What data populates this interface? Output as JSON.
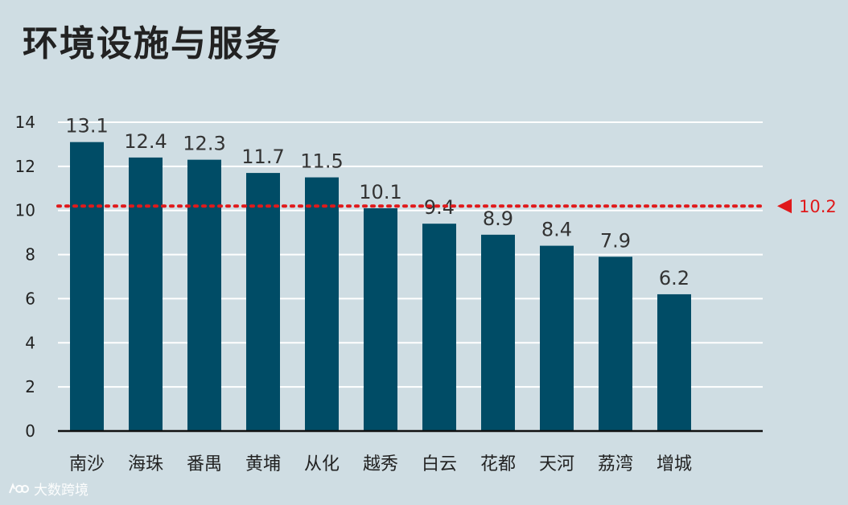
{
  "title": "环境设施与服务",
  "chart_data": {
    "type": "bar",
    "title": "环境设施与服务",
    "categories": [
      "南沙",
      "海珠",
      "番禺",
      "黄埔",
      "从化",
      "越秀",
      "白云",
      "花都",
      "天河",
      "荔湾",
      "增城"
    ],
    "series": [
      {
        "values": [
          13.1,
          12.4,
          12.3,
          11.7,
          11.5,
          10.1,
          9.4,
          8.9,
          8.4,
          7.9,
          6.2
        ]
      }
    ],
    "data_labels": [
      "13.1",
      "12.4",
      "12.3",
      "11.7",
      "11.5",
      "10.1",
      "9.4",
      "8.9",
      "8.4",
      "7.9",
      "6.2"
    ],
    "ylim": [
      0,
      14
    ],
    "yticks": [
      0,
      2,
      4,
      6,
      8,
      10,
      12,
      14
    ],
    "grid": true,
    "reference_line": {
      "value": 10.2,
      "label": "10.2",
      "color": "#e0191b",
      "style": "dotted"
    },
    "bar_color": "#004c66"
  },
  "watermark": {
    "text": "大数跨境",
    "icon": "brand-logo-icon"
  }
}
